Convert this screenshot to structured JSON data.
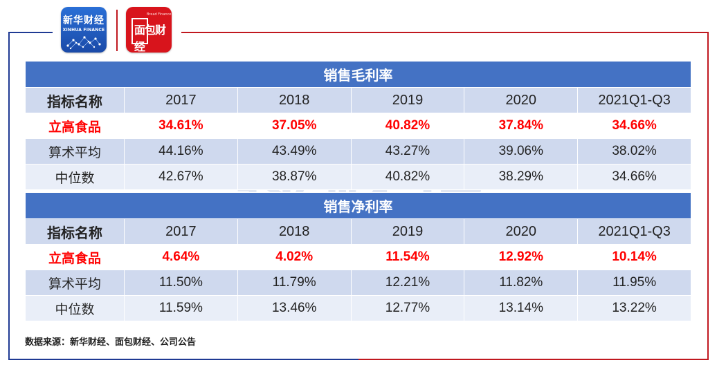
{
  "logos": {
    "xinhua": {
      "name": "新华财经",
      "subtitle": "XINHUA FINANCE"
    },
    "mianbao": {
      "name": "面包财经",
      "name_en": "Bread Finance"
    }
  },
  "watermark": "读财报",
  "tables": [
    {
      "title": "销售毛利率",
      "headers": [
        "指标名称",
        "2017",
        "2018",
        "2019",
        "2020",
        "2021Q1-Q3"
      ],
      "rows": [
        {
          "label": "立高食品",
          "values": [
            "34.61%",
            "37.05%",
            "40.82%",
            "37.84%",
            "34.66%"
          ]
        },
        {
          "label": "算术平均",
          "values": [
            "44.16%",
            "43.49%",
            "43.27%",
            "39.06%",
            "38.02%"
          ]
        },
        {
          "label": "中位数",
          "values": [
            "42.67%",
            "38.87%",
            "40.82%",
            "38.29%",
            "34.66%"
          ]
        }
      ]
    },
    {
      "title": "销售净利率",
      "headers": [
        "指标名称",
        "2017",
        "2018",
        "2019",
        "2020",
        "2021Q1-Q3"
      ],
      "rows": [
        {
          "label": "立高食品",
          "values": [
            "4.64%",
            "4.02%",
            "11.54%",
            "12.92%",
            "10.14%"
          ]
        },
        {
          "label": "算术平均",
          "values": [
            "11.50%",
            "11.79%",
            "12.21%",
            "11.82%",
            "11.95%"
          ]
        },
        {
          "label": "中位数",
          "values": [
            "11.59%",
            "13.46%",
            "12.77%",
            "13.14%",
            "13.22%"
          ]
        }
      ]
    }
  ],
  "source": "数据来源：新华财经、面包财经、公司公告",
  "colors": {
    "header_blue": "#4472c4",
    "highlight_red": "#ff0000",
    "row_light": "#cfd9ee",
    "row_lighter": "#e9eef8"
  }
}
